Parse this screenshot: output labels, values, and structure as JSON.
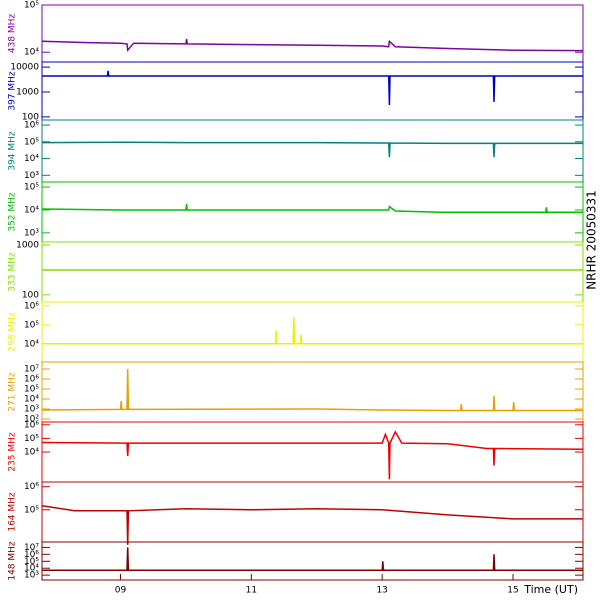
{
  "title": "NRHR 20050331",
  "chart_data": [
    {
      "type": "line",
      "ylabel": "438 MHz",
      "color": "#8000a0",
      "log": true,
      "xlim": [
        7.8,
        16.07
      ],
      "ylim": [
        6200,
        100000
      ],
      "yticks": [
        {
          "value": 10000,
          "label": "10⁴"
        },
        {
          "value": 100000,
          "label": "10⁵"
        }
      ],
      "x": [
        7.8,
        8.5,
        9.0,
        9.1,
        9.11,
        9.2,
        10.0,
        10.01,
        10.02,
        11,
        12,
        13,
        13.1,
        13.11,
        13.2,
        14,
        15,
        16.07
      ],
      "values": [
        17000,
        16000,
        15500,
        15000,
        11000,
        15500,
        15000,
        19000,
        15000,
        14500,
        14000,
        13500,
        13000,
        17000,
        13000,
        12000,
        11000,
        10800
      ]
    },
    {
      "type": "line",
      "ylabel": "397 MHz",
      "color": "#0000c0",
      "log": true,
      "xlim": [
        7.8,
        16.07
      ],
      "ylim": [
        75,
        16000
      ],
      "yticks": [
        100,
        1000,
        10000
      ],
      "x": [
        7.8,
        8.8,
        8.81,
        8.82,
        9,
        13.1,
        13.11,
        13.12,
        14.7,
        14.71,
        14.72,
        16.07
      ],
      "values": [
        4400,
        4400,
        7000,
        4400,
        4400,
        4400,
        300,
        4400,
        4400,
        400,
        4400,
        4400
      ]
    },
    {
      "type": "line",
      "ylabel": "394 MHz",
      "color": "#008080",
      "log": true,
      "xlim": [
        7.8,
        16.07
      ],
      "ylim": [
        400,
        2000000
      ],
      "yticks": [
        {
          "value": 1000,
          "label": "10³"
        },
        {
          "value": 10000,
          "label": "10⁴"
        },
        {
          "value": 100000,
          "label": "10⁵"
        },
        {
          "value": 1000000,
          "label": "10⁶"
        }
      ],
      "x": [
        7.8,
        9,
        10,
        12,
        13.1,
        13.11,
        13.12,
        14,
        14.7,
        14.71,
        14.72,
        16.07
      ],
      "values": [
        90000,
        95000,
        90000,
        90000,
        85000,
        12000,
        85000,
        80000,
        80000,
        12000,
        80000,
        80000
      ]
    },
    {
      "type": "line",
      "ylabel": "352 MHz",
      "color": "#00c000",
      "log": true,
      "xlim": [
        7.8,
        16.07
      ],
      "ylim": [
        400,
        166000
      ],
      "yticks": [
        {
          "value": 1000,
          "label": "10³"
        },
        {
          "value": 10000,
          "label": "10⁴"
        },
        {
          "value": 100000,
          "label": "10⁵"
        }
      ],
      "x": [
        7.8,
        9,
        10,
        10.01,
        10.02,
        12,
        13,
        13.1,
        13.11,
        13.2,
        13.9,
        14,
        15,
        15.5,
        15.51,
        15.52,
        16.07
      ],
      "values": [
        11000,
        10000,
        10000,
        18000,
        10000,
        10000,
        10000,
        10000,
        14000,
        9000,
        8000,
        8000,
        8000,
        8000,
        13000,
        8000,
        8000
      ]
    },
    {
      "type": "line",
      "ylabel": "333 MHz",
      "color": "#80e000",
      "log": true,
      "xlim": [
        7.8,
        16.07
      ],
      "ylim": [
        72,
        1150
      ],
      "yticks": [
        100,
        1000
      ],
      "x": [
        7.8,
        16.07
      ],
      "values": [
        316,
        316
      ]
    },
    {
      "type": "line",
      "ylabel": "298 MHz",
      "color": "#f0f000",
      "log": true,
      "xlim": [
        7.8,
        16.07
      ],
      "ylim": [
        1100,
        1600000
      ],
      "yticks": [
        {
          "value": 10000,
          "label": "10⁴"
        },
        {
          "value": 100000,
          "label": "10⁵"
        },
        {
          "value": 1000000,
          "label": "10⁶"
        }
      ],
      "x": [
        7.8,
        11.37,
        11.38,
        11.39,
        11.64,
        11.65,
        11.66,
        11.75,
        11.76,
        11.77,
        16.07
      ],
      "values": [
        10000,
        10000,
        50000,
        10000,
        10000,
        250000,
        10000,
        10000,
        30000,
        10000,
        10000
      ]
    },
    {
      "type": "line",
      "ylabel": "271 MHz",
      "color": "#e8a000",
      "log": true,
      "xlim": [
        7.8,
        16.07
      ],
      "ylim": [
        50,
        50000000
      ],
      "yticks": [
        {
          "value": 100,
          "label": "10²"
        },
        {
          "value": 1000,
          "label": "10³"
        },
        {
          "value": 10000,
          "label": "10⁴"
        },
        {
          "value": 100000,
          "label": "10⁵"
        },
        {
          "value": 1000000,
          "label": "10⁶"
        },
        {
          "value": 10000000,
          "label": "10⁷"
        }
      ],
      "x": [
        7.8,
        9.0,
        9.01,
        9.02,
        9.1,
        9.11,
        9.12,
        12,
        13,
        14,
        14.2,
        14.21,
        14.22,
        14.7,
        14.71,
        14.72,
        15,
        15.01,
        15.02,
        16.07
      ],
      "values": [
        800,
        900,
        6000,
        900,
        900,
        10000000,
        900,
        1000,
        800,
        700,
        700,
        3000,
        700,
        700,
        20000,
        700,
        700,
        5000,
        700,
        700
      ]
    },
    {
      "type": "line",
      "ylabel": "235 MHz",
      "color": "#ee0000",
      "log": true,
      "xlim": [
        7.8,
        16.07
      ],
      "ylim": [
        63,
        1600000
      ],
      "yticks": [
        {
          "value": 10000,
          "label": "10⁴"
        },
        {
          "value": 100000,
          "label": "10⁵"
        },
        {
          "value": 1000000,
          "label": "10⁶"
        }
      ],
      "x": [
        7.8,
        9.1,
        9.11,
        9.12,
        12,
        13.0,
        13.05,
        13.1,
        13.11,
        13.12,
        13.2,
        13.3,
        14,
        14.6,
        14.7,
        14.71,
        14.72,
        14.8,
        16.07
      ],
      "values": [
        50000,
        45000,
        5000,
        45000,
        45000,
        45000,
        200000,
        45000,
        100,
        45000,
        300000,
        45000,
        40000,
        18000,
        18000,
        1000,
        18000,
        18000,
        16000
      ]
    },
    {
      "type": "line",
      "ylabel": "164 MHz",
      "color": "#c00000",
      "log": true,
      "xlim": [
        7.8,
        16.07
      ],
      "ylim": [
        4000,
        1600000
      ],
      "yticks": [
        {
          "value": 100000,
          "label": "10⁵"
        },
        {
          "value": 1000000,
          "label": "10⁶"
        }
      ],
      "x": [
        7.8,
        8.3,
        9.1,
        9.11,
        9.12,
        10,
        11,
        12,
        13,
        14,
        15,
        16.07
      ],
      "values": [
        150000,
        90000,
        90000,
        3000,
        90000,
        110000,
        100000,
        110000,
        100000,
        60000,
        40000,
        40000
      ]
    },
    {
      "type": "line",
      "ylabel": "148 MHz",
      "color": "#800000",
      "log": true,
      "xlim": [
        7.8,
        16.07
      ],
      "ylim": [
        200,
        60000000
      ],
      "yticks": [
        {
          "value": 1000,
          "label": "10³"
        },
        {
          "value": 10000,
          "label": "10⁴"
        },
        {
          "value": 100000,
          "label": "10⁵"
        },
        {
          "value": 1000000,
          "label": "10⁶"
        },
        {
          "value": 10000000,
          "label": "10⁷"
        }
      ],
      "x": [
        7.8,
        9.1,
        9.11,
        9.12,
        13,
        13.01,
        13.02,
        14.7,
        14.71,
        14.72,
        16.07
      ],
      "values": [
        5000,
        5000,
        10000000,
        5000,
        5000,
        100000,
        5000,
        5000,
        1000000,
        5000,
        5000
      ],
      "xticks": [
        {
          "value": 9,
          "label": "09"
        },
        {
          "value": 11,
          "label": "11"
        },
        {
          "value": 13,
          "label": "13"
        },
        {
          "value": 15,
          "label": "15"
        }
      ],
      "xlabel": "Time (UT)"
    }
  ]
}
